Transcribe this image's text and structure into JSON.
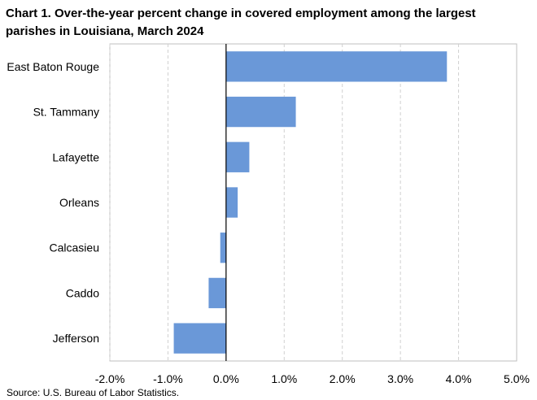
{
  "chart_data": {
    "type": "bar",
    "orientation": "horizontal",
    "title": "Chart 1. Over-the-year percent change in covered employment among the largest parishes in Louisiana, March 2024",
    "categories": [
      "East Baton Rouge",
      "St. Tammany",
      "Lafayette",
      "Orleans",
      "Calcasieu",
      "Caddo",
      "Jefferson"
    ],
    "values": [
      3.8,
      1.2,
      0.4,
      0.2,
      -0.1,
      -0.3,
      -0.9
    ],
    "unit": "%",
    "xlim": [
      -2.0,
      5.0
    ],
    "x_ticks": [
      -2.0,
      -1.0,
      0.0,
      1.0,
      2.0,
      3.0,
      4.0,
      5.0
    ],
    "x_tick_labels": [
      "-2.0%",
      "-1.0%",
      "0.0%",
      "1.0%",
      "2.0%",
      "3.0%",
      "4.0%",
      "5.0%"
    ],
    "grid": "vertical-dashed",
    "bar_color": "#6a98d8",
    "source": "Source: U.S. Bureau of Labor Statistics."
  }
}
